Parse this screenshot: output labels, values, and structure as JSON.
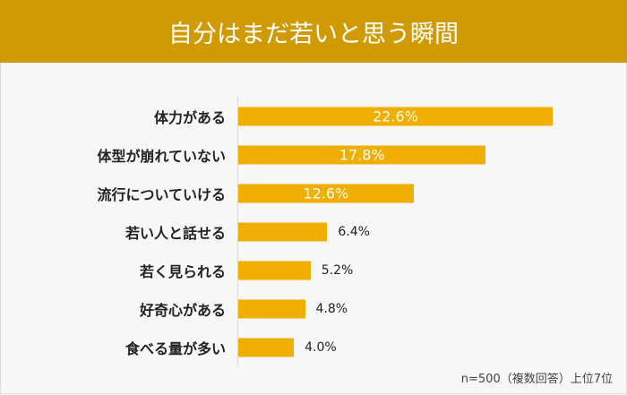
{
  "chart_data": {
    "type": "bar",
    "orientation": "horizontal",
    "title": "自分はまだ若いと思う瞬間",
    "categories": [
      "体力がある",
      "体型が崩れていない",
      "流行についていける",
      "若い人と話せる",
      "若く見られる",
      "好奇心がある",
      "食べる量が多い"
    ],
    "values": [
      22.6,
      17.8,
      12.6,
      6.4,
      5.2,
      4.8,
      4.0
    ],
    "value_labels": [
      "22.6%",
      "17.8%",
      "12.6%",
      "6.4%",
      "5.2%",
      "4.8%",
      "4.0%"
    ],
    "unit": "%",
    "note": "n=500（複数回答）上位7位",
    "bar_color": "#f0ae00",
    "header_color": "#d19a02",
    "grid": false
  }
}
